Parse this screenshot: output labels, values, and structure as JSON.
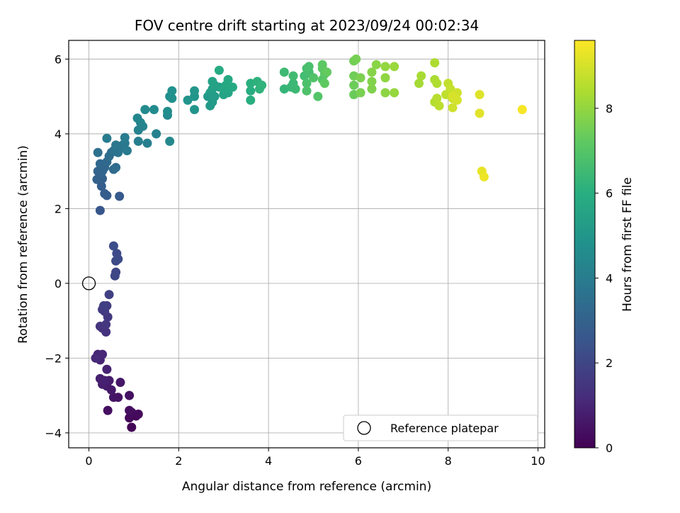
{
  "chart_data": {
    "type": "scatter",
    "title": "FOV centre drift starting at 2023/09/24 00:02:34",
    "xlabel": "Angular distance from reference (arcmin)",
    "ylabel": "Rotation from reference (arcmin)",
    "colorbar_label": "Hours from first FF file",
    "xlim": [
      -0.45,
      10.15
    ],
    "ylim": [
      -4.4,
      6.5
    ],
    "clim": [
      0,
      9.6
    ],
    "colormap": "viridis",
    "grid": true,
    "legend_placement": "lower-right",
    "x_ticks": [
      0,
      2,
      4,
      6,
      8,
      10
    ],
    "y_ticks": [
      -4,
      -2,
      0,
      2,
      4,
      6
    ],
    "colorbar_ticks": [
      0,
      2,
      4,
      6,
      8
    ],
    "reference": {
      "label": "Reference platepar",
      "x": 0,
      "y": 0
    },
    "points": [
      {
        "x": 0.95,
        "y": -3.85,
        "t": 0.1
      },
      {
        "x": 1.05,
        "y": -3.55,
        "t": 0.15
      },
      {
        "x": 0.9,
        "y": -3.6,
        "t": 0.2
      },
      {
        "x": 1.1,
        "y": -3.5,
        "t": 0.25
      },
      {
        "x": 0.95,
        "y": -3.45,
        "t": 0.3
      },
      {
        "x": 0.9,
        "y": -3.4,
        "t": 0.35
      },
      {
        "x": 0.42,
        "y": -3.4,
        "t": 0.4
      },
      {
        "x": 0.9,
        "y": -3.0,
        "t": 0.45
      },
      {
        "x": 0.65,
        "y": -3.05,
        "t": 0.5
      },
      {
        "x": 0.55,
        "y": -3.05,
        "t": 0.55
      },
      {
        "x": 0.7,
        "y": -2.65,
        "t": 0.6
      },
      {
        "x": 0.5,
        "y": -2.85,
        "t": 0.65
      },
      {
        "x": 0.4,
        "y": -2.75,
        "t": 0.7
      },
      {
        "x": 0.45,
        "y": -2.6,
        "t": 0.75
      },
      {
        "x": 0.3,
        "y": -2.7,
        "t": 0.8
      },
      {
        "x": 0.25,
        "y": -2.55,
        "t": 0.85
      },
      {
        "x": 0.35,
        "y": -2.6,
        "t": 0.9
      },
      {
        "x": 0.4,
        "y": -2.3,
        "t": 0.95
      },
      {
        "x": 0.25,
        "y": -2.05,
        "t": 1.0
      },
      {
        "x": 0.2,
        "y": -1.9,
        "t": 1.05
      },
      {
        "x": 0.3,
        "y": -1.9,
        "t": 1.1
      },
      {
        "x": 0.15,
        "y": -2.0,
        "t": 1.15
      },
      {
        "x": 0.38,
        "y": -1.3,
        "t": 1.4
      },
      {
        "x": 0.3,
        "y": -1.2,
        "t": 1.45
      },
      {
        "x": 0.25,
        "y": -1.15,
        "t": 1.5
      },
      {
        "x": 0.38,
        "y": -1.1,
        "t": 1.55
      },
      {
        "x": 0.42,
        "y": -0.9,
        "t": 1.6
      },
      {
        "x": 0.35,
        "y": -0.75,
        "t": 1.65
      },
      {
        "x": 0.3,
        "y": -0.7,
        "t": 1.7
      },
      {
        "x": 0.4,
        "y": -0.6,
        "t": 1.75
      },
      {
        "x": 0.33,
        "y": -0.6,
        "t": 1.8
      },
      {
        "x": 0.45,
        "y": -0.3,
        "t": 1.85
      },
      {
        "x": 0.6,
        "y": 0.3,
        "t": 2.05
      },
      {
        "x": 0.58,
        "y": 0.2,
        "t": 2.1
      },
      {
        "x": 0.6,
        "y": 0.6,
        "t": 2.15
      },
      {
        "x": 0.65,
        "y": 0.65,
        "t": 2.2
      },
      {
        "x": 0.62,
        "y": 0.8,
        "t": 2.25
      },
      {
        "x": 0.55,
        "y": 1.0,
        "t": 2.3
      },
      {
        "x": 0.25,
        "y": 1.95,
        "t": 2.6
      },
      {
        "x": 0.68,
        "y": 2.33,
        "t": 2.7
      },
      {
        "x": 0.4,
        "y": 2.35,
        "t": 2.8
      },
      {
        "x": 0.35,
        "y": 2.4,
        "t": 2.85
      },
      {
        "x": 0.28,
        "y": 2.6,
        "t": 2.9
      },
      {
        "x": 0.3,
        "y": 2.8,
        "t": 2.95
      },
      {
        "x": 0.18,
        "y": 2.78,
        "t": 3.0
      },
      {
        "x": 0.25,
        "y": 2.9,
        "t": 3.05
      },
      {
        "x": 0.2,
        "y": 3.0,
        "t": 3.1
      },
      {
        "x": 0.3,
        "y": 3.0,
        "t": 3.15
      },
      {
        "x": 0.35,
        "y": 3.1,
        "t": 3.2
      },
      {
        "x": 0.25,
        "y": 3.2,
        "t": 3.25
      },
      {
        "x": 0.4,
        "y": 3.25,
        "t": 3.3
      },
      {
        "x": 0.55,
        "y": 3.05,
        "t": 3.35
      },
      {
        "x": 0.6,
        "y": 3.1,
        "t": 3.4
      },
      {
        "x": 0.45,
        "y": 3.4,
        "t": 3.45
      },
      {
        "x": 0.5,
        "y": 3.5,
        "t": 3.5
      },
      {
        "x": 0.2,
        "y": 3.5,
        "t": 3.55
      },
      {
        "x": 0.55,
        "y": 3.55,
        "t": 3.6
      },
      {
        "x": 0.6,
        "y": 3.6,
        "t": 3.65
      },
      {
        "x": 0.65,
        "y": 3.5,
        "t": 3.7
      },
      {
        "x": 0.7,
        "y": 3.65,
        "t": 3.75
      },
      {
        "x": 0.75,
        "y": 3.7,
        "t": 3.8
      },
      {
        "x": 0.6,
        "y": 3.7,
        "t": 3.85
      },
      {
        "x": 0.8,
        "y": 3.75,
        "t": 3.9
      },
      {
        "x": 0.85,
        "y": 3.55,
        "t": 3.95
      },
      {
        "x": 0.4,
        "y": 3.88,
        "t": 4.0
      },
      {
        "x": 0.8,
        "y": 3.9,
        "t": 4.05
      },
      {
        "x": 1.1,
        "y": 3.8,
        "t": 4.1
      },
      {
        "x": 1.3,
        "y": 3.75,
        "t": 4.15
      },
      {
        "x": 1.5,
        "y": 4.0,
        "t": 4.2
      },
      {
        "x": 1.1,
        "y": 4.1,
        "t": 4.25
      },
      {
        "x": 1.2,
        "y": 4.2,
        "t": 4.3
      },
      {
        "x": 1.15,
        "y": 4.3,
        "t": 4.35
      },
      {
        "x": 1.08,
        "y": 4.42,
        "t": 4.4
      },
      {
        "x": 1.8,
        "y": 3.8,
        "t": 4.5
      },
      {
        "x": 1.75,
        "y": 4.5,
        "t": 4.55
      },
      {
        "x": 1.25,
        "y": 4.65,
        "t": 4.6
      },
      {
        "x": 1.45,
        "y": 4.65,
        "t": 4.65
      },
      {
        "x": 1.75,
        "y": 4.6,
        "t": 4.7
      },
      {
        "x": 1.8,
        "y": 5.0,
        "t": 4.75
      },
      {
        "x": 1.85,
        "y": 4.95,
        "t": 4.8
      },
      {
        "x": 1.85,
        "y": 5.15,
        "t": 4.85
      },
      {
        "x": 2.2,
        "y": 4.9,
        "t": 4.95
      },
      {
        "x": 2.35,
        "y": 4.65,
        "t": 5.0
      },
      {
        "x": 2.35,
        "y": 5.0,
        "t": 5.05
      },
      {
        "x": 2.35,
        "y": 5.15,
        "t": 5.1
      },
      {
        "x": 2.65,
        "y": 5.0,
        "t": 5.15
      },
      {
        "x": 2.7,
        "y": 4.75,
        "t": 5.2
      },
      {
        "x": 2.75,
        "y": 4.85,
        "t": 5.25
      },
      {
        "x": 2.8,
        "y": 5.0,
        "t": 5.3
      },
      {
        "x": 2.7,
        "y": 5.1,
        "t": 5.35
      },
      {
        "x": 2.75,
        "y": 5.2,
        "t": 5.4
      },
      {
        "x": 2.9,
        "y": 5.25,
        "t": 5.45
      },
      {
        "x": 2.8,
        "y": 5.3,
        "t": 5.5
      },
      {
        "x": 2.75,
        "y": 5.4,
        "t": 5.55
      },
      {
        "x": 3.0,
        "y": 5.05,
        "t": 5.6
      },
      {
        "x": 3.1,
        "y": 5.1,
        "t": 5.65
      },
      {
        "x": 3.0,
        "y": 5.2,
        "t": 5.7
      },
      {
        "x": 3.05,
        "y": 5.3,
        "t": 5.75
      },
      {
        "x": 3.2,
        "y": 5.25,
        "t": 5.8
      },
      {
        "x": 3.1,
        "y": 5.45,
        "t": 5.85
      },
      {
        "x": 2.9,
        "y": 5.7,
        "t": 5.9
      },
      {
        "x": 3.6,
        "y": 5.15,
        "t": 6.0
      },
      {
        "x": 3.6,
        "y": 4.9,
        "t": 6.05
      },
      {
        "x": 3.6,
        "y": 5.35,
        "t": 6.1
      },
      {
        "x": 3.75,
        "y": 5.4,
        "t": 6.15
      },
      {
        "x": 3.8,
        "y": 5.2,
        "t": 6.2
      },
      {
        "x": 3.85,
        "y": 5.3,
        "t": 6.25
      },
      {
        "x": 4.35,
        "y": 5.2,
        "t": 6.35
      },
      {
        "x": 4.5,
        "y": 5.25,
        "t": 6.4
      },
      {
        "x": 4.55,
        "y": 5.35,
        "t": 6.45
      },
      {
        "x": 4.6,
        "y": 5.2,
        "t": 6.5
      },
      {
        "x": 4.35,
        "y": 5.65,
        "t": 6.55
      },
      {
        "x": 4.55,
        "y": 5.55,
        "t": 6.6
      },
      {
        "x": 4.8,
        "y": 5.55,
        "t": 6.65
      },
      {
        "x": 4.9,
        "y": 5.65,
        "t": 6.7
      },
      {
        "x": 4.85,
        "y": 5.75,
        "t": 6.75
      },
      {
        "x": 4.9,
        "y": 5.8,
        "t": 6.8
      },
      {
        "x": 4.85,
        "y": 5.35,
        "t": 6.85
      },
      {
        "x": 4.85,
        "y": 5.15,
        "t": 6.9
      },
      {
        "x": 5.0,
        "y": 5.5,
        "t": 6.95
      },
      {
        "x": 5.1,
        "y": 5.0,
        "t": 7.0
      },
      {
        "x": 5.2,
        "y": 5.45,
        "t": 7.05
      },
      {
        "x": 5.25,
        "y": 5.6,
        "t": 7.1
      },
      {
        "x": 5.2,
        "y": 5.75,
        "t": 7.15
      },
      {
        "x": 5.2,
        "y": 5.85,
        "t": 7.2
      },
      {
        "x": 5.25,
        "y": 5.35,
        "t": 7.25
      },
      {
        "x": 5.3,
        "y": 5.65,
        "t": 7.3
      },
      {
        "x": 5.9,
        "y": 5.05,
        "t": 7.4
      },
      {
        "x": 5.9,
        "y": 5.3,
        "t": 7.45
      },
      {
        "x": 5.9,
        "y": 5.55,
        "t": 7.5
      },
      {
        "x": 5.9,
        "y": 5.95,
        "t": 7.55
      },
      {
        "x": 5.95,
        "y": 6.0,
        "t": 7.6
      },
      {
        "x": 6.05,
        "y": 5.1,
        "t": 7.65
      },
      {
        "x": 6.05,
        "y": 5.5,
        "t": 7.7
      },
      {
        "x": 6.3,
        "y": 5.2,
        "t": 7.75
      },
      {
        "x": 6.3,
        "y": 5.4,
        "t": 7.8
      },
      {
        "x": 6.3,
        "y": 5.65,
        "t": 7.85
      },
      {
        "x": 6.4,
        "y": 5.85,
        "t": 7.9
      },
      {
        "x": 6.6,
        "y": 5.1,
        "t": 7.95
      },
      {
        "x": 6.6,
        "y": 5.5,
        "t": 8.0
      },
      {
        "x": 6.6,
        "y": 5.8,
        "t": 8.05
      },
      {
        "x": 6.8,
        "y": 5.1,
        "t": 8.1
      },
      {
        "x": 6.8,
        "y": 5.8,
        "t": 8.15
      },
      {
        "x": 7.35,
        "y": 5.35,
        "t": 8.3
      },
      {
        "x": 7.4,
        "y": 5.55,
        "t": 8.35
      },
      {
        "x": 7.7,
        "y": 5.45,
        "t": 8.4
      },
      {
        "x": 7.7,
        "y": 5.9,
        "t": 8.45
      },
      {
        "x": 7.75,
        "y": 5.35,
        "t": 8.5
      },
      {
        "x": 7.7,
        "y": 4.85,
        "t": 8.55
      },
      {
        "x": 7.75,
        "y": 4.95,
        "t": 8.6
      },
      {
        "x": 7.8,
        "y": 4.75,
        "t": 8.65
      },
      {
        "x": 7.95,
        "y": 5.05,
        "t": 8.7
      },
      {
        "x": 8.0,
        "y": 5.35,
        "t": 8.75
      },
      {
        "x": 8.05,
        "y": 5.2,
        "t": 8.8
      },
      {
        "x": 8.1,
        "y": 4.95,
        "t": 8.85
      },
      {
        "x": 8.1,
        "y": 4.7,
        "t": 8.9
      },
      {
        "x": 8.2,
        "y": 5.1,
        "t": 8.95
      },
      {
        "x": 8.2,
        "y": 4.9,
        "t": 9.0
      },
      {
        "x": 8.1,
        "y": 5.0,
        "t": 9.05
      },
      {
        "x": 8.7,
        "y": 5.05,
        "t": 9.15
      },
      {
        "x": 8.7,
        "y": 4.55,
        "t": 9.2
      },
      {
        "x": 8.75,
        "y": 3.0,
        "t": 9.3
      },
      {
        "x": 8.8,
        "y": 2.85,
        "t": 9.35
      },
      {
        "x": 9.65,
        "y": 4.65,
        "t": 9.5
      }
    ]
  }
}
